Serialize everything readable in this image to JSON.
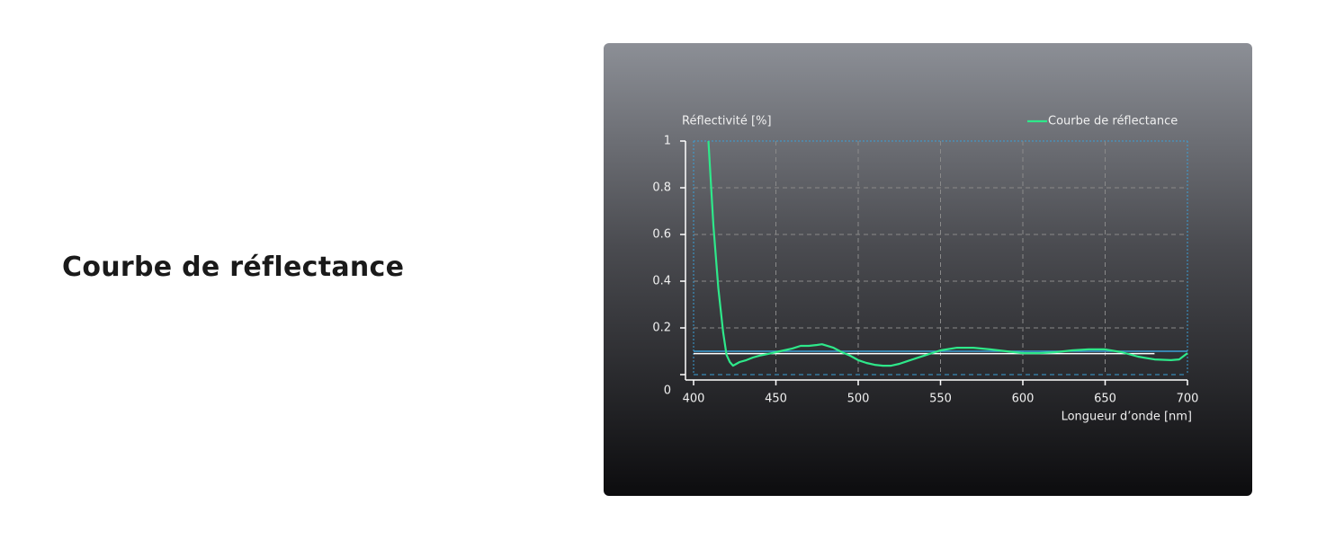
{
  "heading": "Courbe de réflectance",
  "chart_data": {
    "type": "line",
    "ylabel": "Réflectivité [%]",
    "xlabel": "Longueur d’onde [nm]",
    "x": [
      409,
      412,
      415,
      418,
      420,
      422,
      424,
      426,
      428,
      432,
      436,
      440,
      445,
      450,
      455,
      460,
      465,
      470,
      475,
      478,
      485,
      490,
      495,
      500,
      505,
      510,
      515,
      520,
      525,
      530,
      540,
      550,
      560,
      570,
      580,
      590,
      600,
      610,
      620,
      630,
      640,
      650,
      660,
      670,
      680,
      690,
      695,
      700
    ],
    "series": [
      {
        "name": "Courbe de réflectance",
        "color": "#2ee88a",
        "values": [
          1.0,
          0.64,
          0.37,
          0.18,
          0.085,
          0.054,
          0.038,
          0.046,
          0.054,
          0.062,
          0.073,
          0.081,
          0.088,
          0.096,
          0.104,
          0.112,
          0.123,
          0.123,
          0.127,
          0.13,
          0.115,
          0.096,
          0.081,
          0.062,
          0.05,
          0.042,
          0.038,
          0.038,
          0.046,
          0.058,
          0.081,
          0.104,
          0.115,
          0.115,
          0.108,
          0.1,
          0.092,
          0.092,
          0.096,
          0.104,
          0.108,
          0.108,
          0.096,
          0.077,
          0.065,
          0.062,
          0.065,
          0.092
        ]
      }
    ],
    "hlines": [
      {
        "y": 0.1,
        "x": [
          400,
          700
        ],
        "color": "#3a9fd6"
      },
      {
        "y": 0.09,
        "x": [
          400,
          680
        ],
        "color": "#ffffff"
      }
    ],
    "xlim": [
      400,
      700
    ],
    "xticks": [
      400,
      450,
      500,
      550,
      600,
      650,
      700
    ],
    "ylim": [
      0,
      1
    ],
    "yticks": [
      0,
      0.2,
      0.4,
      0.6,
      0.8,
      1
    ],
    "grid": true,
    "legend": "top-right"
  }
}
